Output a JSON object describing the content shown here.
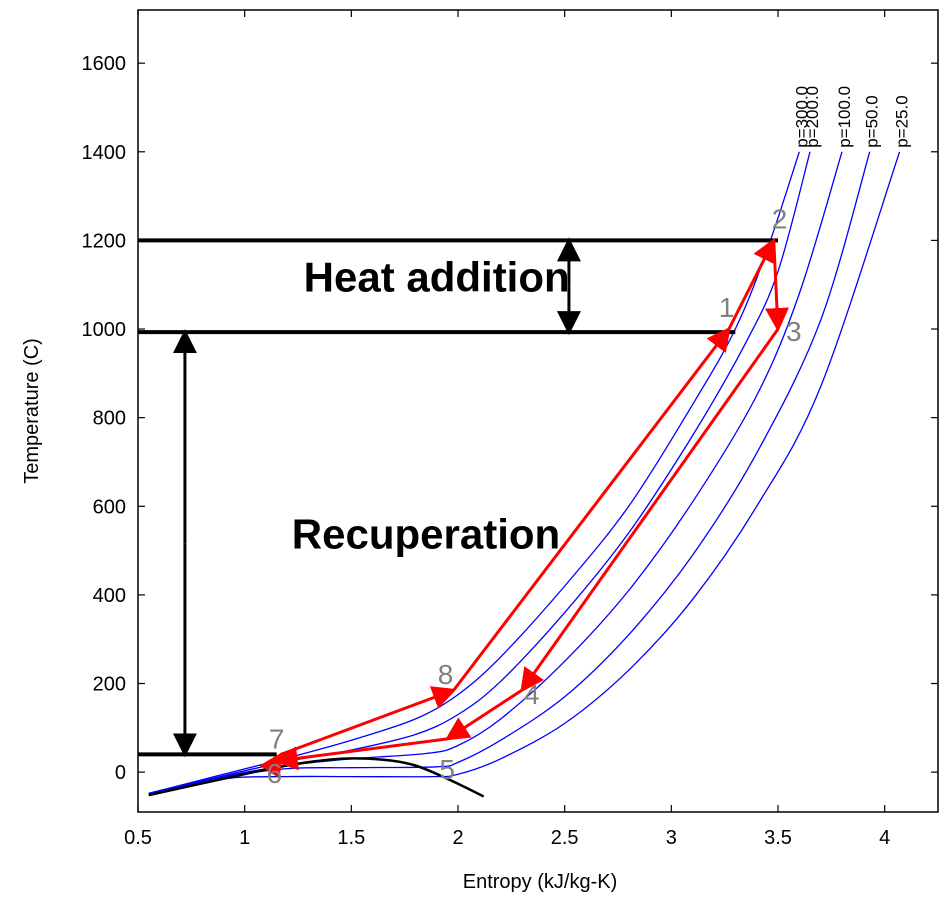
{
  "chart_data": {
    "type": "line",
    "title": "",
    "xlabel": "Entropy (kJ/kg-K)",
    "ylabel": "Temperature (C)",
    "xlim": [
      0.5,
      4.25
    ],
    "ylim": [
      -90,
      1720
    ],
    "xticks": [
      {
        "value": 0.5,
        "label": "0.5"
      },
      {
        "value": 1,
        "label": "1"
      },
      {
        "value": 1.5,
        "label": "1.5"
      },
      {
        "value": 2,
        "label": "2"
      },
      {
        "value": 2.5,
        "label": "2.5"
      },
      {
        "value": 3,
        "label": "3"
      },
      {
        "value": 3.5,
        "label": "3.5"
      },
      {
        "value": 4,
        "label": "4"
      }
    ],
    "yticks": [
      {
        "value": 0,
        "label": "0"
      },
      {
        "value": 200,
        "label": "200"
      },
      {
        "value": 400,
        "label": "400"
      },
      {
        "value": 600,
        "label": "600"
      },
      {
        "value": 800,
        "label": "800"
      },
      {
        "value": 1000,
        "label": "1000"
      },
      {
        "value": 1200,
        "label": "1200"
      },
      {
        "value": 1400,
        "label": "1400"
      },
      {
        "value": 1600,
        "label": "1600"
      }
    ],
    "grid": false,
    "colors": {
      "isobar": "#0000ff",
      "cycle": "#ff0000",
      "dome": "#000000",
      "state_label": "#808080"
    },
    "isobars": [
      {
        "label": "p=300.0",
        "points": [
          [
            0.55,
            -48
          ],
          [
            0.9,
            -5
          ],
          [
            1.2,
            32
          ],
          [
            1.5,
            72
          ],
          [
            1.8,
            120
          ],
          [
            2.0,
            175
          ],
          [
            2.2,
            260
          ],
          [
            2.5,
            420
          ],
          [
            2.8,
            600
          ],
          [
            3.1,
            830
          ],
          [
            3.3,
            1000
          ],
          [
            3.45,
            1180
          ],
          [
            3.6,
            1400
          ]
        ]
      },
      {
        "label": "p=200.0",
        "points": [
          [
            0.55,
            -48
          ],
          [
            0.9,
            -8
          ],
          [
            1.2,
            24
          ],
          [
            1.5,
            50
          ],
          [
            1.8,
            85
          ],
          [
            2.0,
            130
          ],
          [
            2.2,
            205
          ],
          [
            2.5,
            360
          ],
          [
            2.8,
            540
          ],
          [
            3.1,
            760
          ],
          [
            3.35,
            970
          ],
          [
            3.5,
            1130
          ],
          [
            3.65,
            1400
          ]
        ]
      },
      {
        "label": "p=100.0",
        "points": [
          [
            0.55,
            -48
          ],
          [
            0.9,
            -10
          ],
          [
            1.2,
            15
          ],
          [
            1.5,
            30
          ],
          [
            1.85,
            42
          ],
          [
            2.0,
            60
          ],
          [
            2.2,
            120
          ],
          [
            2.5,
            250
          ],
          [
            2.8,
            410
          ],
          [
            3.1,
            610
          ],
          [
            3.4,
            850
          ],
          [
            3.6,
            1080
          ],
          [
            3.8,
            1400
          ]
        ]
      },
      {
        "label": "p=50.0",
        "points": [
          [
            0.55,
            -48
          ],
          [
            0.9,
            -12
          ],
          [
            1.2,
            8
          ],
          [
            1.5,
            10
          ],
          [
            1.9,
            12
          ],
          [
            2.0,
            22
          ],
          [
            2.2,
            72
          ],
          [
            2.5,
            170
          ],
          [
            2.8,
            310
          ],
          [
            3.1,
            490
          ],
          [
            3.4,
            720
          ],
          [
            3.7,
            1020
          ],
          [
            3.93,
            1400
          ]
        ]
      },
      {
        "label": "p=25.0",
        "points": [
          [
            0.55,
            -48
          ],
          [
            0.9,
            -15
          ],
          [
            1.2,
            -10
          ],
          [
            1.5,
            -10
          ],
          [
            1.88,
            -10
          ],
          [
            2.0,
            -5
          ],
          [
            2.2,
            30
          ],
          [
            2.5,
            110
          ],
          [
            2.8,
            230
          ],
          [
            3.1,
            390
          ],
          [
            3.4,
            600
          ],
          [
            3.7,
            870
          ],
          [
            4.07,
            1400
          ]
        ]
      }
    ],
    "saturation_dome": [
      [
        0.55,
        -52
      ],
      [
        0.9,
        -15
      ],
      [
        1.2,
        15
      ],
      [
        1.45,
        30
      ],
      [
        1.65,
        28
      ],
      [
        1.8,
        15
      ],
      [
        1.95,
        -15
      ],
      [
        2.12,
        -55
      ]
    ],
    "cycle": {
      "points": [
        {
          "label": "1",
          "s": 3.27,
          "T": 1000
        },
        {
          "label": "2",
          "s": 3.48,
          "T": 1200
        },
        {
          "label": "3",
          "s": 3.5,
          "T": 1000
        },
        {
          "label": "4",
          "s": 2.3,
          "T": 185
        },
        {
          "label": "5",
          "s": 1.95,
          "T": 75
        },
        {
          "label": "6",
          "s": 1.15,
          "T": 25
        },
        {
          "label": "7",
          "s": 1.17,
          "T": 40
        },
        {
          "label": "8",
          "s": 1.98,
          "T": 185
        }
      ],
      "order": [
        "1",
        "2",
        "3",
        "4",
        "5",
        "6",
        "7",
        "8",
        "1"
      ]
    },
    "reference_lines": [
      {
        "T": 1200,
        "s_from": 0.5,
        "s_to": 3.5
      },
      {
        "T": 993,
        "s_from": 0.5,
        "s_to": 3.3
      },
      {
        "T": 40,
        "s_from": 0.5,
        "s_to": 1.15
      }
    ],
    "span_arrows": [
      {
        "s": 2.52,
        "T_from": 993,
        "T_to": 1200
      },
      {
        "s": 0.72,
        "T_from": 40,
        "T_to": 993
      }
    ],
    "annotations": [
      {
        "text": "Heat addition",
        "s": 1.9,
        "T": 1085
      },
      {
        "text": "Recuperation",
        "s": 1.85,
        "T": 505
      }
    ]
  }
}
